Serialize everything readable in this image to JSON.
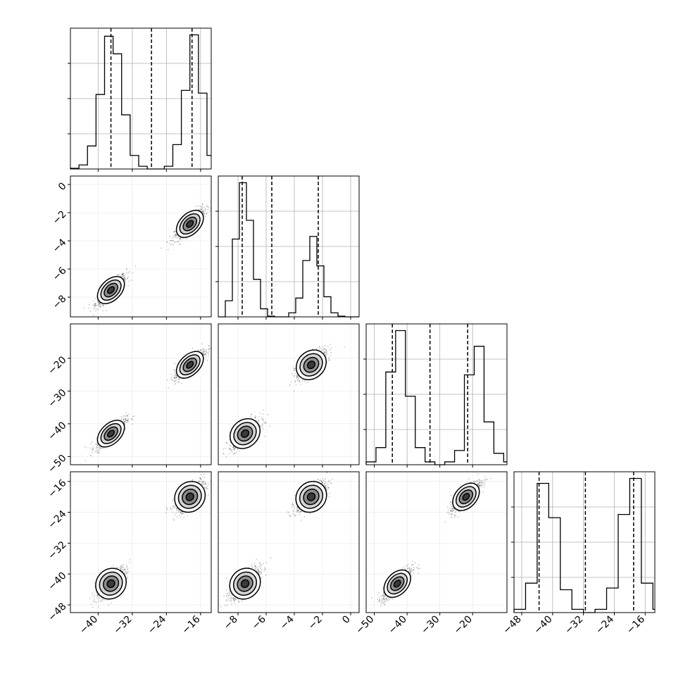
{
  "chart_data": {
    "type": "corner",
    "title": "",
    "n_params": 4,
    "parameters": [
      {
        "label": "",
        "range": [
          -46.5,
          -13.5
        ],
        "ticks": [
          -40,
          -32,
          -24,
          -16
        ],
        "tick_labels": [
          "−40",
          "−32",
          "−24",
          "−16"
        ],
        "modes": [
          -37,
          -18.5
        ],
        "sd": 1.8,
        "quantile_lines": [
          -37,
          -27.5,
          -18
        ]
      },
      {
        "label": "",
        "range": [
          -9.4,
          0.6
        ],
        "ticks": [
          -8,
          -6,
          -4,
          -2,
          0
        ],
        "tick_labels": [
          "−8",
          "−6",
          "−4",
          "−2",
          "0"
        ],
        "modes": [
          -7.5,
          -2.8
        ],
        "sd": 0.55,
        "quantile_lines": [
          -7.7,
          -5.6,
          -2.3
        ]
      },
      {
        "label": "",
        "range": [
          -52.5,
          -9.5
        ],
        "ticks": [
          -50,
          -40,
          -30,
          -20
        ],
        "tick_labels": [
          "−50",
          "−40",
          "−30",
          "−20"
        ],
        "modes": [
          -43,
          -22
        ],
        "sd": 2.3,
        "quantile_lines": [
          -44.5,
          -33,
          -21.5
        ]
      },
      {
        "label": "",
        "range": [
          -50,
          -13.5
        ],
        "ticks": [
          -48,
          -40,
          -32,
          -24,
          -16
        ],
        "tick_labels": [
          "−48",
          "−40",
          "−32",
          "−24",
          "−16"
        ],
        "modes": [
          -42.5,
          -20
        ],
        "sd": 2.1,
        "quantile_lines": [
          -43.5,
          -31.5,
          -19
        ]
      }
    ],
    "correlation": 0.7,
    "histograms": [
      {
        "param": 0,
        "bin_edges": [
          -46.5,
          -44.5,
          -42.5,
          -40.5,
          -38.5,
          -36.5,
          -34.5,
          -32.5,
          -30.5,
          -28.5,
          -26.5,
          -24.5,
          -22.5,
          -20.5,
          -18.5,
          -16.5,
          -14.5,
          -13.5
        ],
        "counts": [
          0.5,
          3,
          17,
          55,
          98,
          85,
          40,
          10,
          2,
          0,
          0,
          2,
          18,
          58,
          99,
          56,
          10
        ]
      },
      {
        "param": 1,
        "bin_edges": [
          -9.4,
          -8.9,
          -8.4,
          -7.9,
          -7.4,
          -6.9,
          -6.4,
          -5.9,
          -5.4,
          -4.9,
          -4.4,
          -3.9,
          -3.4,
          -2.9,
          -2.4,
          -1.9,
          -1.4,
          -0.9,
          -0.4,
          0.1,
          0.6
        ],
        "counts": [
          0,
          12,
          58,
          100,
          72,
          28,
          6,
          0.5,
          0,
          0,
          3,
          14,
          42,
          60,
          38,
          15,
          3,
          0.5,
          0,
          0
        ]
      },
      {
        "param": 2,
        "bin_edges": [
          -52.5,
          -49.5,
          -46.5,
          -43.5,
          -40.5,
          -37.5,
          -34.5,
          -31.5,
          -28.5,
          -25.5,
          -22.5,
          -19.5,
          -16.5,
          -13.5,
          -10.5,
          -9.5
        ],
        "counts": [
          2,
          12,
          65,
          94,
          48,
          12,
          2,
          0,
          2,
          10,
          63,
          83,
          30,
          8,
          2
        ]
      },
      {
        "param": 3,
        "bin_edges": [
          -50,
          -47,
          -44,
          -41,
          -38,
          -35,
          -32,
          -29,
          -26,
          -23,
          -20,
          -17,
          -14,
          -13.5
        ],
        "counts": [
          2,
          18,
          79,
          58,
          14,
          2,
          0,
          2,
          15,
          60,
          82,
          18,
          2
        ]
      }
    ],
    "grid": true,
    "style": {
      "hist_color": "#000000",
      "scatter_color": "#000000",
      "contour_fill": [
        "#ffffff",
        "#d2d2d2",
        "#8c8c8c",
        "#3a3a3a"
      ]
    }
  }
}
